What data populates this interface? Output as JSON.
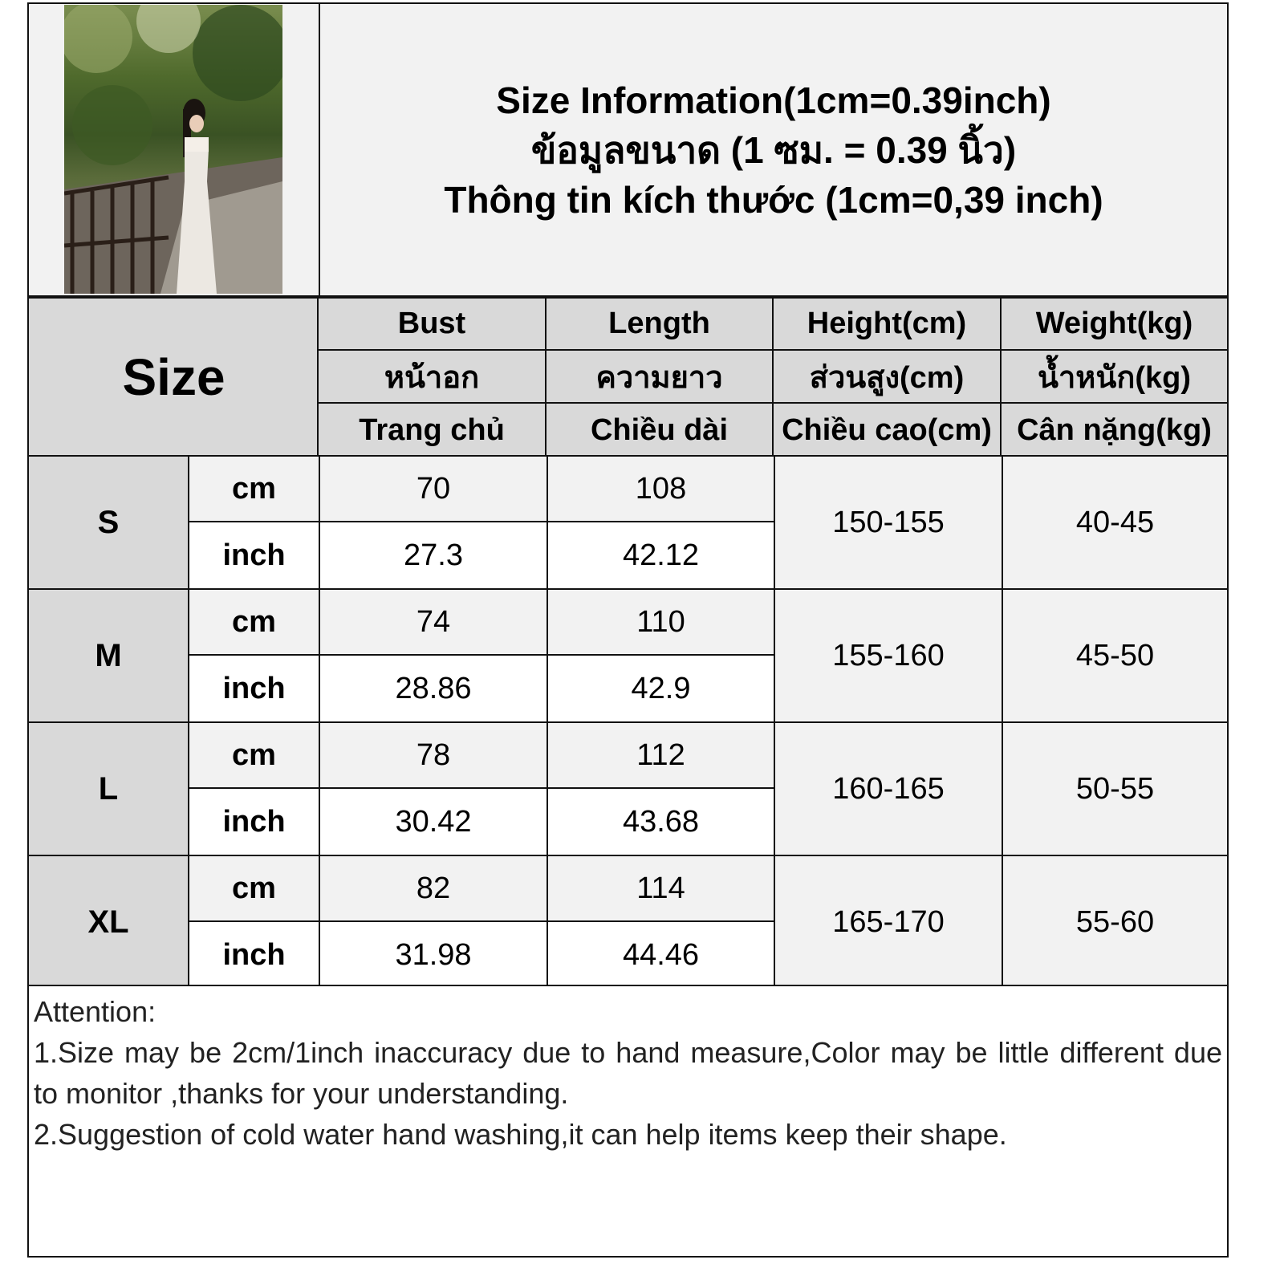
{
  "title": {
    "line1": "Size Information(1cm=0.39inch)",
    "line2": "ข้อมูลขนาด (1 ซม. = 0.39 นิ้ว)",
    "line3": "Thông tin kích thước (1cm=0,39 inch)"
  },
  "header": {
    "size_label": "Size",
    "columns": [
      {
        "en": "Bust",
        "th": "หน้าอก",
        "vi": "Trang chủ"
      },
      {
        "en": "Length",
        "th": "ความยาว",
        "vi": "Chiều dài"
      },
      {
        "en": "Height(cm)",
        "th": "ส่วนสูง(cm)",
        "vi": "Chiều cao(cm)"
      },
      {
        "en": "Weight(kg)",
        "th": "น้ำหนัก(kg)",
        "vi": "Cân nặng(kg)"
      }
    ]
  },
  "units": {
    "cm": "cm",
    "inch": "inch"
  },
  "rows": [
    {
      "size": "S",
      "bust_cm": "70",
      "length_cm": "108",
      "bust_inch": "27.3",
      "length_inch": "42.12",
      "height": "150-155",
      "weight": "40-45"
    },
    {
      "size": "M",
      "bust_cm": "74",
      "length_cm": "110",
      "bust_inch": "28.86",
      "length_inch": "42.9",
      "height": "155-160",
      "weight": "45-50"
    },
    {
      "size": "L",
      "bust_cm": "78",
      "length_cm": "112",
      "bust_inch": "30.42",
      "length_inch": "43.68",
      "height": "160-165",
      "weight": "50-55"
    },
    {
      "size": "XL",
      "bust_cm": "82",
      "length_cm": "114",
      "bust_inch": "31.98",
      "length_inch": "44.46",
      "height": "165-170",
      "weight": "55-60"
    }
  ],
  "notes": {
    "heading": "Attention:",
    "line1": "1.Size may be 2cm/1inch inaccuracy due to hand measure,Color may be little different due to monitor ,thanks for your understanding.",
    "line2": "2.Suggestion of cold water hand washing,it can help items keep their shape."
  },
  "colors": {
    "header_bg": "#d9d9d9",
    "cell_bg": "#f2f2f2",
    "border": "#111111"
  }
}
